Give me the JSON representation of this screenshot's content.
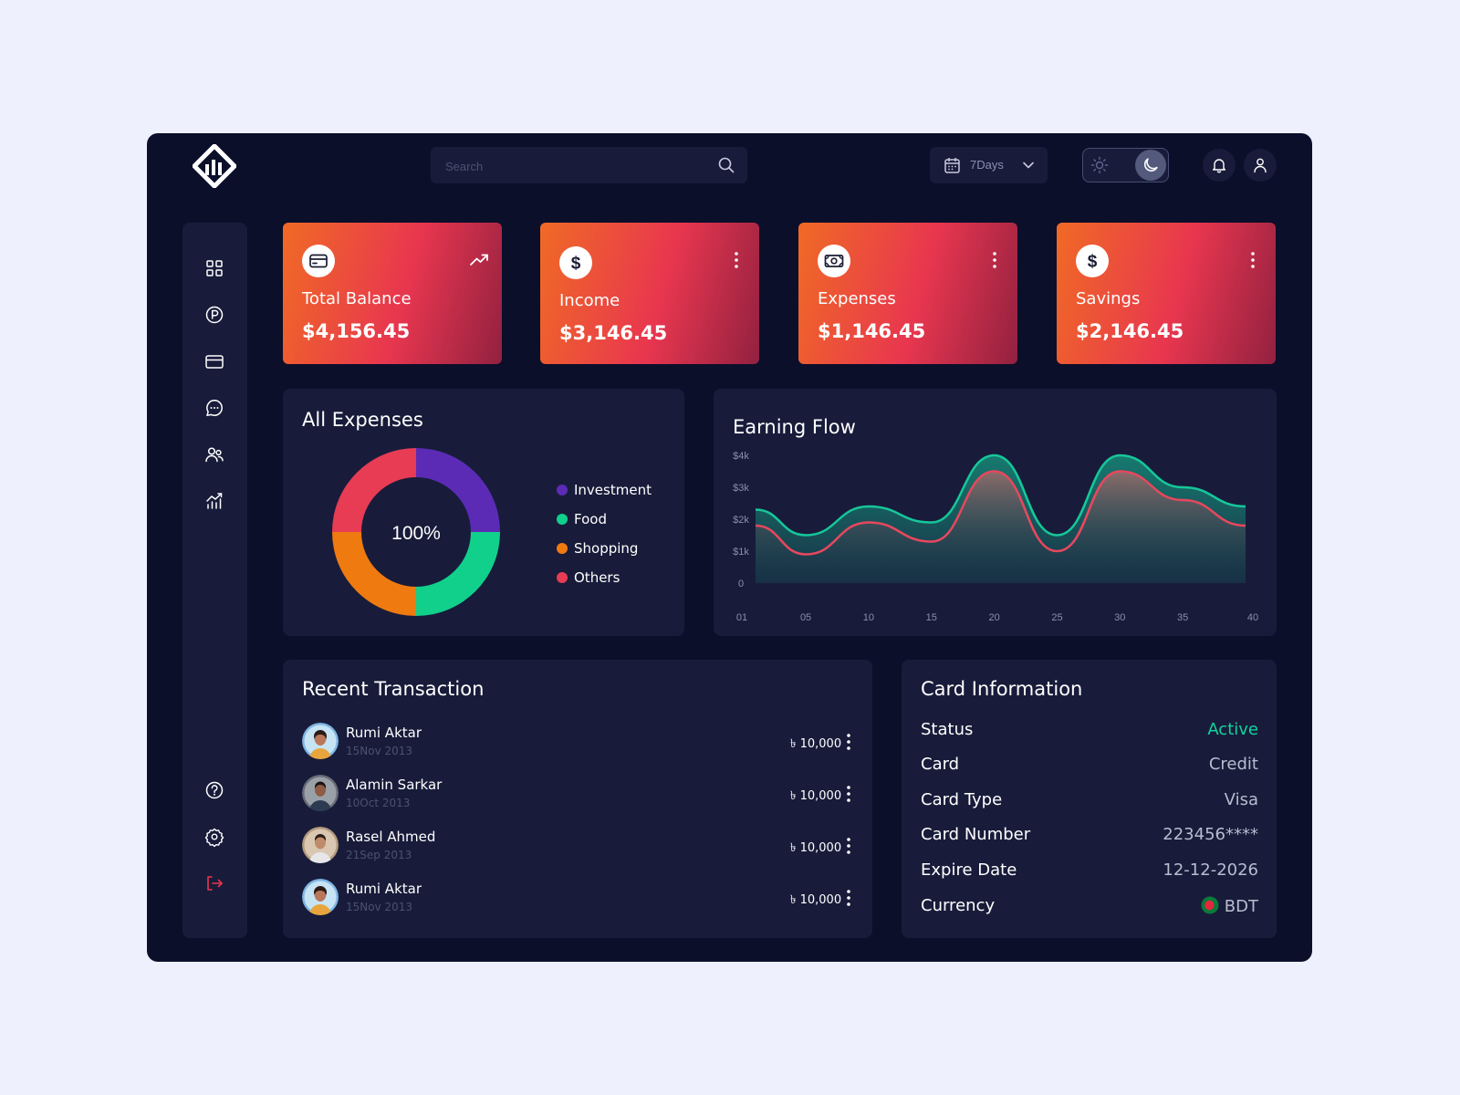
{
  "header": {
    "search_placeholder": "Search",
    "range_label": "7Days"
  },
  "stats": [
    {
      "label": "Total Balance",
      "value": "$4,156.45"
    },
    {
      "label": "Income",
      "value": "$3,146.45"
    },
    {
      "label": "Expenses",
      "value": "$1,146.45"
    },
    {
      "label": "Savings",
      "value": "$2,146.45"
    }
  ],
  "expenses": {
    "title": "All Expenses",
    "center_label": "100%",
    "legend": [
      "Investment",
      "Food",
      "Shopping",
      "Others"
    ]
  },
  "earning": {
    "title": "Earning Flow"
  },
  "chart_data": [
    {
      "type": "pie",
      "title": "All Expenses",
      "categories": [
        "Investment",
        "Food",
        "Shopping",
        "Others"
      ],
      "values": [
        25,
        25,
        25,
        25
      ],
      "colors": [
        "#5b2bb6",
        "#11d08c",
        "#ef7a10",
        "#e83b54"
      ],
      "center_text": "100%"
    },
    {
      "type": "area",
      "title": "Earning Flow",
      "x_ticks": [
        "01",
        "05",
        "10",
        "15",
        "20",
        "25",
        "30",
        "35",
        "40"
      ],
      "y_ticks": [
        "0",
        "$1k",
        "$2k",
        "$3k",
        "$4k"
      ],
      "ylim": [
        0,
        4000
      ],
      "x": [
        1,
        5,
        10,
        15,
        20,
        25,
        30,
        35,
        40
      ],
      "series": [
        {
          "values": [
            2300,
            1500,
            2400,
            1900,
            4000,
            1500,
            4000,
            3000,
            2400
          ],
          "color": "#16c79a"
        },
        {
          "values": [
            1800,
            900,
            1900,
            1300,
            3500,
            1000,
            3500,
            2600,
            1800
          ],
          "color": "#e8475e"
        }
      ]
    }
  ],
  "transactions": {
    "title": "Recent Transaction",
    "items": [
      {
        "name": "Rumi Aktar",
        "date": "15Nov 2013",
        "amount": "৳ 10,000"
      },
      {
        "name": "Alamin Sarkar",
        "date": "10Oct 2013",
        "amount": "৳ 10,000"
      },
      {
        "name": "Rasel Ahmed",
        "date": "21Sep 2013",
        "amount": "৳ 10,000"
      },
      {
        "name": "Rumi Aktar",
        "date": "15Nov 2013",
        "amount": "৳ 10,000"
      }
    ]
  },
  "card_info": {
    "title": "Card Information",
    "status_color": "#12d39d",
    "rows": [
      {
        "key": "Status",
        "value": "Active"
      },
      {
        "key": "Card",
        "value": "Credit"
      },
      {
        "key": "Card Type",
        "value": "Visa"
      },
      {
        "key": "Card Number",
        "value": "223456****"
      },
      {
        "key": "Expire Date",
        "value": "12-12-2026"
      },
      {
        "key": "Currency",
        "value": "BDT"
      }
    ]
  }
}
